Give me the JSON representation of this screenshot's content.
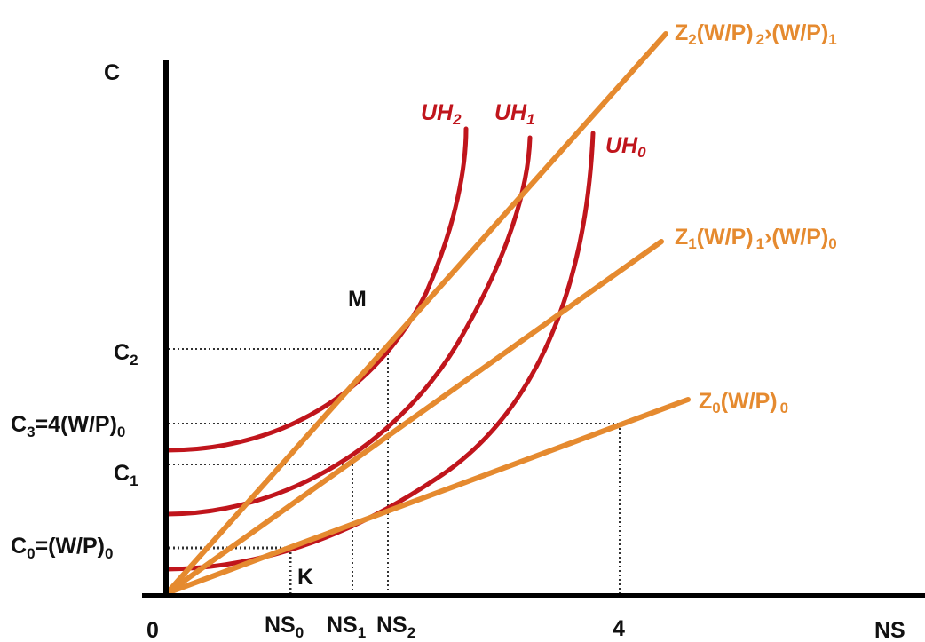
{
  "axes": {
    "y_label": "C",
    "x_label": "NS",
    "origin_label": "0",
    "x_tick_4": "4"
  },
  "y_ticks": {
    "c2": {
      "main": "C",
      "sub": "2",
      "rest": ""
    },
    "c3": {
      "main": "C",
      "sub": "3",
      "rest": "=4(W/P)",
      "sub2": "0"
    },
    "c1": {
      "main": "C",
      "sub": "1",
      "rest": ""
    },
    "c0": {
      "main": "C",
      "sub": "0",
      "rest": "=(W/P)",
      "sub2": "0"
    }
  },
  "x_ticks": {
    "ns0": {
      "main": "NS",
      "sub": "0"
    },
    "ns1": {
      "main": "NS",
      "sub": "1"
    },
    "ns2": {
      "main": "NS",
      "sub": "2"
    }
  },
  "points": {
    "m": "M",
    "k": "K"
  },
  "budget_lines": {
    "z2": {
      "main": "Z",
      "sub": "2",
      "mid": "(W/P)",
      "sub_mid": "2",
      "gt": "›",
      "tail": "(W/P)",
      "sub_tail": "1"
    },
    "z1": {
      "main": "Z",
      "sub": "1",
      "mid": "(W/P)",
      "sub_mid": "1",
      "gt": "›",
      "tail": "(W/P)",
      "sub_tail": "0"
    },
    "z0": {
      "main": "Z",
      "sub": "0",
      "mid": "(W/P)",
      "sub_mid": "0"
    }
  },
  "indifference_curves": {
    "uh2": {
      "main": "UH",
      "sub": "2"
    },
    "uh1": {
      "main": "UH",
      "sub": "1"
    },
    "uh0": {
      "main": "UH",
      "sub": "0"
    }
  },
  "colors": {
    "budget_line": "#E58A2F",
    "indifference_curve": "#C0151C",
    "axis": "#000000",
    "guide": "#333333"
  }
}
